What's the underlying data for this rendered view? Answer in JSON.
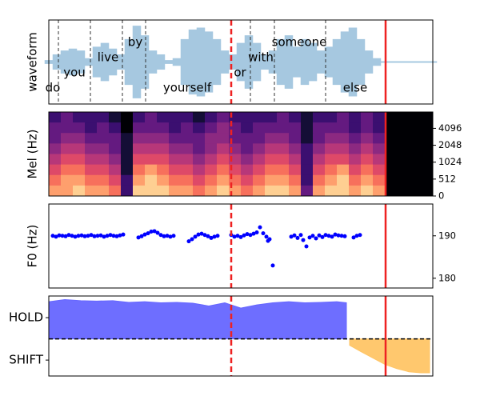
{
  "chart_data": [
    {
      "type": "waveform",
      "ylabel": "waveform",
      "color": "#a6c8e0",
      "xlim": [
        0,
        480
      ],
      "ylim": [
        -1.1,
        1.1
      ],
      "x": [
        0,
        10,
        20,
        30,
        40,
        50,
        60,
        70,
        80,
        90,
        100,
        110,
        120,
        130,
        140,
        150,
        160,
        170,
        180,
        190,
        200,
        210,
        220,
        230,
        240,
        250,
        260,
        270,
        280,
        290,
        300,
        310,
        320,
        330,
        340,
        350,
        360,
        370,
        380,
        390,
        400,
        410,
        420,
        430,
        440,
        450,
        460,
        470,
        480
      ],
      "values": [
        0.05,
        0.2,
        0.3,
        0.35,
        0.3,
        0.1,
        0.4,
        0.5,
        0.35,
        0.2,
        0.6,
        0.95,
        0.7,
        0.3,
        0.2,
        0.05,
        0.1,
        0.6,
        0.85,
        0.9,
        0.8,
        0.6,
        0.3,
        0.2,
        0.5,
        0.7,
        0.5,
        0.2,
        0.3,
        0.6,
        0.7,
        0.4,
        0.6,
        0.5,
        0.3,
        0.4,
        0.6,
        0.8,
        0.9,
        0.6,
        0.3,
        0.1,
        0.02,
        0.02,
        0.02,
        0.02,
        0.02,
        0.02,
        0.02
      ],
      "words": [
        {
          "text": "do",
          "t": 5
        },
        {
          "text": "you",
          "t": 32
        },
        {
          "text": "live",
          "t": 74
        },
        {
          "text": "by",
          "t": 108
        },
        {
          "text": "yourself",
          "t": 173
        },
        {
          "text": "or",
          "t": 239
        },
        {
          "text": "with",
          "t": 265
        },
        {
          "text": "someone",
          "t": 313
        },
        {
          "text": "else",
          "t": 383
        }
      ],
      "boundaries": [
        12,
        52,
        92,
        121,
        252,
        282,
        346
      ],
      "vlines": [
        {
          "x": 228,
          "color": "#ee2222",
          "dashed": true
        },
        {
          "x": 421,
          "color": "#ee2222",
          "dashed": false
        }
      ]
    },
    {
      "type": "heatmap",
      "ylabel": "Mel (Hz)",
      "xlim": [
        0,
        480
      ],
      "ylim": [
        0,
        8000
      ],
      "yscale": "symlog",
      "linthresh": 512,
      "logbase": 2,
      "yticks": [
        0,
        512,
        1024,
        2048,
        4096
      ],
      "colors": [
        "#000004",
        "#140e36",
        "#3b0f70",
        "#641a80",
        "#8c2981",
        "#b73779",
        "#de4968",
        "#f7705c",
        "#fe9f6d",
        "#fecf92"
      ],
      "z": [
        [
          2,
          3,
          2,
          2,
          2,
          1,
          0,
          2,
          3,
          2,
          2,
          2,
          1,
          2,
          3,
          2,
          2,
          2,
          2,
          3,
          2,
          1,
          2,
          2,
          3,
          2,
          3,
          2,
          0,
          0,
          0,
          0
        ],
        [
          3,
          3,
          3,
          2,
          3,
          2,
          0,
          3,
          3,
          3,
          2,
          3,
          2,
          3,
          4,
          3,
          2,
          3,
          3,
          3,
          3,
          1,
          3,
          3,
          3,
          2,
          3,
          2,
          0,
          0,
          0,
          0
        ],
        [
          3,
          4,
          4,
          3,
          3,
          3,
          1,
          4,
          4,
          4,
          3,
          3,
          3,
          4,
          4,
          3,
          3,
          3,
          4,
          4,
          3,
          1,
          3,
          4,
          4,
          3,
          4,
          3,
          0,
          0,
          0,
          0
        ],
        [
          4,
          5,
          5,
          4,
          4,
          3,
          1,
          5,
          5,
          5,
          4,
          4,
          3,
          4,
          5,
          4,
          3,
          4,
          5,
          5,
          4,
          2,
          4,
          5,
          5,
          4,
          5,
          4,
          0,
          0,
          0,
          0
        ],
        [
          5,
          6,
          6,
          5,
          5,
          4,
          1,
          6,
          6,
          6,
          5,
          5,
          4,
          5,
          6,
          5,
          4,
          5,
          6,
          6,
          5,
          2,
          5,
          6,
          6,
          5,
          6,
          5,
          0,
          0,
          0,
          0
        ],
        [
          6,
          7,
          7,
          6,
          6,
          5,
          1,
          7,
          8,
          7,
          6,
          6,
          5,
          6,
          7,
          6,
          5,
          6,
          7,
          7,
          6,
          2,
          6,
          7,
          8,
          6,
          7,
          6,
          0,
          0,
          0,
          0
        ],
        [
          7,
          8,
          8,
          7,
          7,
          6,
          2,
          8,
          9,
          8,
          7,
          7,
          6,
          7,
          8,
          7,
          6,
          7,
          8,
          8,
          7,
          2,
          7,
          8,
          9,
          7,
          8,
          7,
          0,
          0,
          0,
          0
        ],
        [
          8,
          8,
          9,
          8,
          8,
          7,
          2,
          9,
          9,
          9,
          8,
          8,
          7,
          8,
          9,
          8,
          7,
          8,
          9,
          9,
          8,
          3,
          8,
          9,
          9,
          8,
          9,
          8,
          0,
          0,
          0,
          0
        ]
      ],
      "vlines": [
        {
          "x": 228,
          "color": "#ee2222",
          "dashed": true
        },
        {
          "x": 421,
          "color": "#ee2222",
          "dashed": false
        }
      ]
    },
    {
      "type": "scatter",
      "ylabel": "F0 (Hz)",
      "color": "#0000ff",
      "xlim": [
        0,
        480
      ],
      "ylim": [
        177.7,
        197.5
      ],
      "yticks": [
        180,
        190
      ],
      "x": [
        5,
        9,
        13,
        17,
        21,
        25,
        29,
        33,
        37,
        41,
        45,
        49,
        53,
        57,
        61,
        65,
        69,
        73,
        77,
        81,
        85,
        89,
        93,
        112,
        116,
        120,
        124,
        128,
        132,
        136,
        140,
        144,
        148,
        152,
        156,
        175,
        179,
        183,
        187,
        191,
        195,
        199,
        203,
        207,
        211,
        228,
        232,
        236,
        240,
        244,
        248,
        252,
        256,
        260,
        264,
        268,
        272,
        274,
        276,
        280,
        303,
        307,
        311,
        315,
        318,
        322,
        326,
        330,
        334,
        338,
        342,
        346,
        350,
        354,
        358,
        362,
        366,
        370,
        381,
        385,
        389
      ],
      "values": [
        190,
        189.8,
        190.1,
        190,
        189.9,
        190.2,
        190,
        189.8,
        190,
        190.1,
        189.9,
        190,
        190.2,
        189.9,
        190,
        190.1,
        189.8,
        190,
        190.2,
        190,
        189.9,
        190.1,
        190.3,
        189.6,
        189.9,
        190.3,
        190.6,
        191,
        191.1,
        190.7,
        190.2,
        189.9,
        190,
        189.8,
        190,
        188.7,
        189.2,
        189.8,
        190.3,
        190.5,
        190.2,
        189.9,
        189.5,
        189.8,
        190,
        190.2,
        189.8,
        190,
        189.7,
        190.1,
        190.4,
        190.2,
        190.5,
        190.8,
        192,
        190.6,
        189.8,
        188.8,
        189.2,
        183,
        189.8,
        190.1,
        189.5,
        190.2,
        189,
        187.5,
        189.6,
        190,
        189.4,
        190.1,
        189.7,
        190.2,
        190,
        189.8,
        190.3,
        190.1,
        190,
        189.9,
        189.6,
        190,
        190.2
      ],
      "vlines": [
        {
          "x": 228,
          "color": "#ee2222",
          "dashed": true
        },
        {
          "x": 421,
          "color": "#ee2222",
          "dashed": false
        }
      ]
    },
    {
      "type": "area",
      "xlim": [
        0,
        480
      ],
      "ylim": [
        -1.75,
        2.02
      ],
      "threshold": 0,
      "pos_color": "#6666ff",
      "neg_color": "#ffc566",
      "yticks": [
        {
          "value": 1,
          "label": "HOLD"
        },
        {
          "value": -1,
          "label": "SHIFT"
        }
      ],
      "x": [
        0,
        20,
        40,
        60,
        80,
        100,
        120,
        140,
        160,
        180,
        200,
        220,
        240,
        260,
        280,
        300,
        320,
        340,
        360,
        372,
        376,
        390,
        405,
        420,
        435,
        450,
        465,
        476
      ],
      "values": [
        1.75,
        1.85,
        1.8,
        1.78,
        1.8,
        1.72,
        1.75,
        1.7,
        1.72,
        1.68,
        1.55,
        1.7,
        1.45,
        1.6,
        1.7,
        1.75,
        1.7,
        1.72,
        1.75,
        1.7,
        -0.3,
        -0.6,
        -0.9,
        -1.2,
        -1.4,
        -1.55,
        -1.6,
        -1.6
      ],
      "vlines": [
        {
          "x": 228,
          "color": "#ee2222",
          "dashed": true
        },
        {
          "x": 421,
          "color": "#ee2222",
          "dashed": false
        }
      ]
    }
  ]
}
